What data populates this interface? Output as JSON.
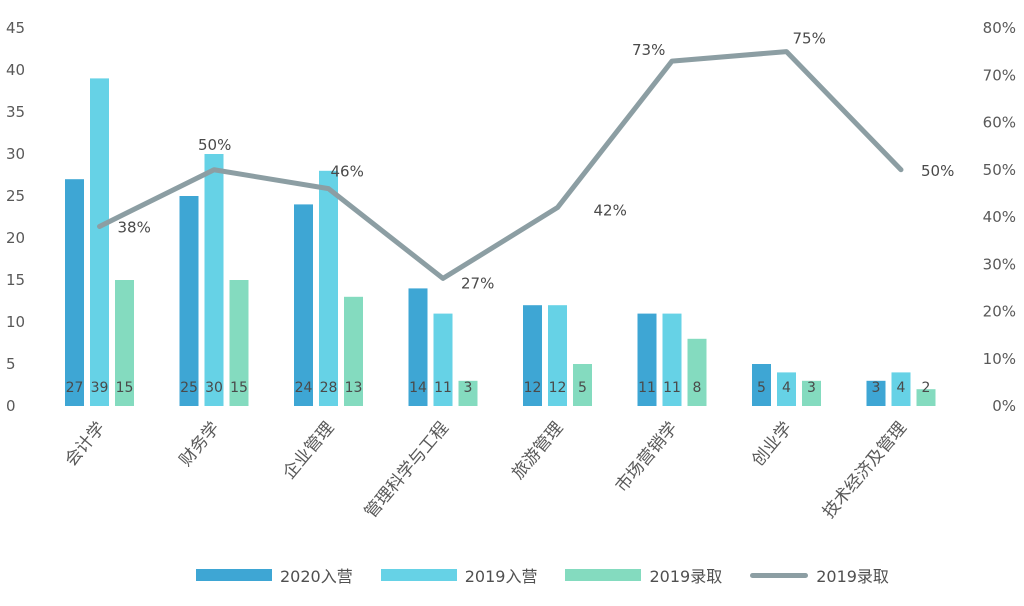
{
  "chart_data": {
    "type": "bar",
    "categories": [
      "会计学",
      "财务学",
      "企业管理",
      "管理科学与工程",
      "旅游管理",
      "市场营销学",
      "创业学",
      "技术经济及管理"
    ],
    "series": [
      {
        "name": "2020入营",
        "type": "bar",
        "axis": "left",
        "color": "#3ea6d4",
        "values": [
          27,
          25,
          24,
          14,
          12,
          11,
          5,
          3
        ]
      },
      {
        "name": "2019入营",
        "type": "bar",
        "axis": "left",
        "color": "#66d2e6",
        "values": [
          39,
          30,
          28,
          11,
          12,
          11,
          4,
          4
        ]
      },
      {
        "name": "2019录取",
        "type": "bar",
        "axis": "left",
        "color": "#84dbbf",
        "values": [
          15,
          15,
          13,
          3,
          5,
          8,
          3,
          2
        ]
      },
      {
        "name": "2019录取",
        "type": "line",
        "axis": "right",
        "color": "#8c9ea3",
        "values": [
          38,
          50,
          46,
          27,
          42,
          73,
          75,
          50
        ],
        "labels": [
          "38%",
          "50%",
          "46%",
          "27%",
          "42%",
          "73%",
          "75%",
          "50%"
        ]
      }
    ],
    "y_left": {
      "min": 0,
      "max": 45,
      "ticks": [
        "0",
        "5",
        "10",
        "15",
        "20",
        "25",
        "30",
        "35",
        "40",
        "45"
      ]
    },
    "y_right": {
      "min": 0,
      "max": 80,
      "ticks": [
        "0%",
        "10%",
        "20%",
        "30%",
        "40%",
        "50%",
        "60%",
        "70%",
        "80%"
      ]
    },
    "grid": false,
    "legend_position": "bottom"
  }
}
